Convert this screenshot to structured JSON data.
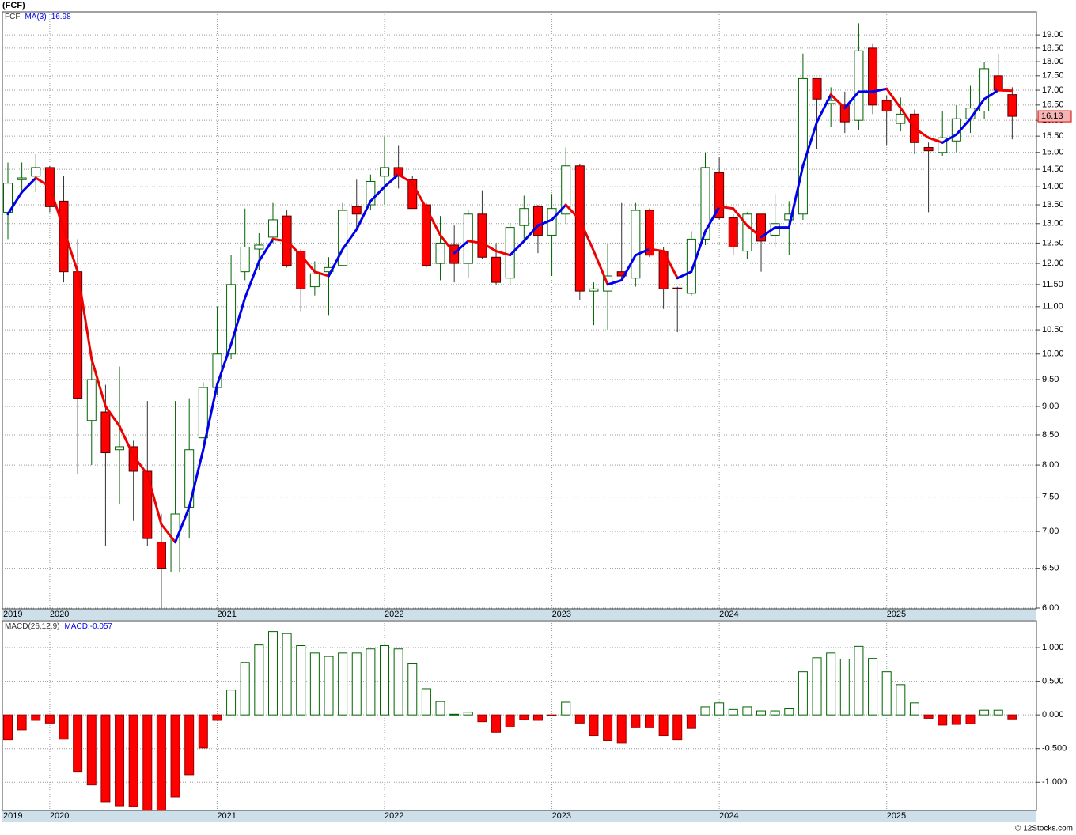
{
  "chart_data": [
    {
      "type": "candlestick",
      "title": "(FCF)",
      "ticker": "FCF",
      "categories": [
        "2019",
        null,
        null,
        "2020",
        null,
        null,
        null,
        null,
        null,
        null,
        null,
        null,
        null,
        null,
        null,
        "2021",
        null,
        null,
        null,
        null,
        null,
        null,
        null,
        null,
        null,
        null,
        null,
        "2022",
        null,
        null,
        null,
        null,
        null,
        null,
        null,
        null,
        null,
        null,
        null,
        "2023",
        null,
        null,
        null,
        null,
        null,
        null,
        null,
        null,
        null,
        null,
        null,
        "2024",
        null,
        null,
        null,
        null,
        null,
        null,
        null,
        null,
        null,
        null,
        null,
        "2025",
        null,
        null,
        null,
        null,
        null,
        null,
        null,
        null,
        null
      ],
      "open": [
        13.3,
        14.2,
        14.3,
        14.55,
        13.6,
        11.8,
        8.75,
        8.9,
        8.25,
        8.3,
        7.9,
        6.85,
        6.45,
        7.35,
        8.45,
        9.35,
        10.0,
        11.8,
        12.35,
        12.65,
        13.2,
        12.3,
        11.45,
        11.8,
        11.95,
        13.45,
        13.5,
        14.3,
        14.55,
        14.2,
        13.5,
        12.0,
        12.45,
        12.0,
        13.25,
        12.15,
        11.65,
        12.95,
        13.45,
        12.7,
        13.25,
        14.6,
        11.35,
        11.35,
        11.8,
        11.65,
        13.35,
        12.3,
        11.42,
        11.3,
        12.6,
        14.4,
        13.15,
        12.3,
        13.25,
        12.7,
        13.1,
        13.25,
        17.4,
        16.55,
        16.5,
        16.0,
        18.5,
        16.65,
        15.9,
        16.2,
        15.15,
        15.0,
        15.35,
        16.05,
        16.3,
        17.5,
        16.85
      ],
      "high": [
        14.7,
        14.7,
        14.95,
        14.6,
        14.3,
        12.6,
        10.05,
        9.4,
        9.75,
        8.4,
        9.1,
        7.25,
        9.1,
        9.15,
        9.45,
        11.0,
        12.2,
        13.4,
        12.75,
        13.55,
        13.35,
        12.35,
        12.05,
        12.15,
        13.55,
        14.2,
        14.35,
        15.5,
        15.2,
        14.3,
        13.55,
        13.2,
        12.95,
        13.35,
        13.9,
        12.5,
        13.0,
        13.75,
        13.5,
        13.8,
        15.15,
        14.65,
        11.55,
        12.5,
        13.55,
        13.55,
        13.4,
        12.4,
        11.45,
        12.8,
        15.0,
        14.85,
        13.25,
        13.3,
        13.25,
        13.8,
        13.6,
        18.3,
        17.4,
        17.1,
        16.95,
        19.45,
        18.65,
        16.8,
        16.75,
        16.35,
        15.3,
        16.3,
        16.5,
        17.15,
        18.0,
        18.3,
        17.1
      ],
      "low": [
        12.6,
        13.9,
        13.85,
        13.3,
        11.55,
        7.85,
        8.0,
        6.8,
        7.4,
        7.15,
        6.8,
        6.0,
        6.45,
        6.9,
        8.3,
        9.2,
        9.9,
        11.6,
        11.85,
        12.5,
        11.9,
        10.9,
        11.25,
        10.8,
        11.95,
        12.85,
        13.35,
        13.5,
        13.95,
        13.4,
        11.9,
        11.6,
        11.55,
        11.65,
        12.1,
        11.5,
        11.5,
        12.55,
        12.25,
        11.7,
        13.0,
        11.15,
        10.6,
        10.5,
        11.6,
        11.45,
        12.15,
        10.95,
        10.45,
        11.25,
        12.45,
        13.1,
        12.2,
        12.1,
        11.8,
        12.4,
        12.2,
        13.1,
        15.1,
        15.8,
        15.6,
        15.7,
        16.2,
        15.2,
        15.65,
        14.95,
        13.3,
        14.9,
        15.0,
        15.6,
        16.05,
        16.95,
        15.4
      ],
      "close": [
        14.1,
        14.25,
        14.55,
        13.45,
        11.8,
        9.15,
        9.5,
        8.2,
        8.3,
        7.9,
        6.9,
        6.5,
        7.25,
        8.25,
        9.35,
        10.0,
        11.5,
        12.4,
        12.45,
        13.1,
        11.95,
        11.4,
        11.75,
        11.9,
        13.35,
        13.25,
        14.15,
        14.55,
        14.3,
        13.4,
        11.95,
        12.5,
        12.0,
        13.25,
        12.15,
        11.55,
        12.9,
        13.4,
        12.7,
        13.4,
        14.6,
        11.35,
        11.4,
        11.7,
        11.7,
        13.35,
        12.2,
        11.4,
        11.4,
        12.6,
        14.55,
        13.15,
        12.4,
        13.25,
        12.55,
        13.0,
        13.25,
        17.4,
        16.7,
        16.65,
        15.95,
        18.4,
        16.5,
        16.3,
        16.2,
        15.3,
        15.05,
        15.45,
        16.05,
        16.4,
        17.75,
        17.0,
        16.13
      ],
      "up_color": "#006400",
      "down_color": "#ff0000",
      "series": [
        {
          "name": "MA(3)",
          "color": "#0000ee",
          "down_color": "#ee0000",
          "values": [
            13.25,
            13.85,
            14.25,
            14.0,
            12.85,
            11.8,
            9.9,
            9.0,
            8.65,
            8.15,
            7.85,
            7.1,
            6.85,
            7.35,
            8.25,
            9.4,
            10.2,
            11.2,
            12.05,
            12.6,
            12.55,
            12.2,
            11.8,
            11.7,
            12.35,
            12.85,
            13.6,
            14.0,
            14.35,
            14.1,
            13.4,
            12.7,
            12.25,
            12.55,
            12.5,
            12.3,
            12.2,
            12.55,
            12.95,
            13.1,
            13.5,
            13.1,
            12.3,
            11.5,
            11.6,
            12.2,
            12.35,
            12.3,
            11.65,
            11.8,
            12.8,
            13.45,
            13.4,
            12.95,
            12.65,
            12.9,
            12.9,
            14.6,
            15.95,
            16.85,
            16.4,
            16.95,
            16.95,
            17.05,
            16.4,
            15.75,
            15.45,
            15.3,
            15.55,
            16.05,
            16.7,
            17.0,
            16.98
          ]
        }
      ],
      "log_scale": true,
      "grid": true,
      "ylim": [
        6,
        19.9
      ],
      "yticks": [
        {
          "value": 6,
          "label": "6.00"
        },
        {
          "value": 6.5,
          "label": "6.50"
        },
        {
          "value": 7,
          "label": "7.00"
        },
        {
          "value": 7.5,
          "label": "7.50"
        },
        {
          "value": 8,
          "label": "8.00"
        },
        {
          "value": 8.5,
          "label": "8.50"
        },
        {
          "value": 9,
          "label": "9.00"
        },
        {
          "value": 9.5,
          "label": "9.50"
        },
        {
          "value": 10,
          "label": "10.00"
        },
        {
          "value": 10.5,
          "label": "10.50"
        },
        {
          "value": 11,
          "label": "11.00"
        },
        {
          "value": 11.5,
          "label": "11.50"
        },
        {
          "value": 12,
          "label": "12.00"
        },
        {
          "value": 12.5,
          "label": "12.50"
        },
        {
          "value": 13,
          "label": "13.00"
        },
        {
          "value": 13.5,
          "label": "13.50"
        },
        {
          "value": 14,
          "label": "14.00"
        },
        {
          "value": 14.5,
          "label": "14.50"
        },
        {
          "value": 15,
          "label": "15.00"
        },
        {
          "value": 15.5,
          "label": "15.50"
        },
        {
          "value": 16,
          "label": "16.00"
        },
        {
          "value": 16.5,
          "label": "16.50"
        },
        {
          "value": 17,
          "label": "17.00"
        },
        {
          "value": 17.5,
          "label": "17.50"
        },
        {
          "value": 18,
          "label": "18.00"
        },
        {
          "value": 18.5,
          "label": "18.50"
        },
        {
          "value": 19,
          "label": "19.00"
        }
      ]
    },
    {
      "type": "bar",
      "title": "MACD(26,12,9)",
      "value_text": "MACD:-0.057",
      "values": [
        -0.37,
        -0.22,
        -0.08,
        -0.12,
        -0.36,
        -0.84,
        -1.04,
        -1.29,
        -1.35,
        -1.36,
        -1.42,
        -1.42,
        -1.22,
        -0.89,
        -0.49,
        -0.08,
        0.37,
        0.78,
        1.04,
        1.24,
        1.21,
        1.03,
        0.92,
        0.87,
        0.92,
        0.92,
        0.98,
        1.03,
        0.98,
        0.76,
        0.39,
        0.2,
        0.01,
        0.04,
        -0.1,
        -0.26,
        -0.18,
        -0.07,
        -0.08,
        -0.01,
        0.19,
        -0.12,
        -0.31,
        -0.38,
        -0.42,
        -0.19,
        -0.19,
        -0.31,
        -0.37,
        -0.2,
        0.12,
        0.18,
        0.08,
        0.12,
        0.06,
        0.06,
        0.09,
        0.64,
        0.85,
        0.92,
        0.83,
        1.02,
        0.84,
        0.64,
        0.45,
        0.18,
        -0.05,
        -0.15,
        -0.14,
        -0.13,
        0.07,
        0.07,
        -0.06
      ],
      "up_color": "#006400",
      "down_color": "#ff0000",
      "grid": true,
      "ylim": [
        -1.42,
        1.4
      ],
      "yticks": [
        {
          "value": -1,
          "label": "-1.000"
        },
        {
          "value": -0.5,
          "label": "-0.500"
        },
        {
          "value": 0,
          "label": "0.000"
        },
        {
          "value": 0.5,
          "label": "0.500"
        },
        {
          "value": 1,
          "label": "1.000"
        }
      ]
    }
  ],
  "footer": "© 12Stocks.com"
}
